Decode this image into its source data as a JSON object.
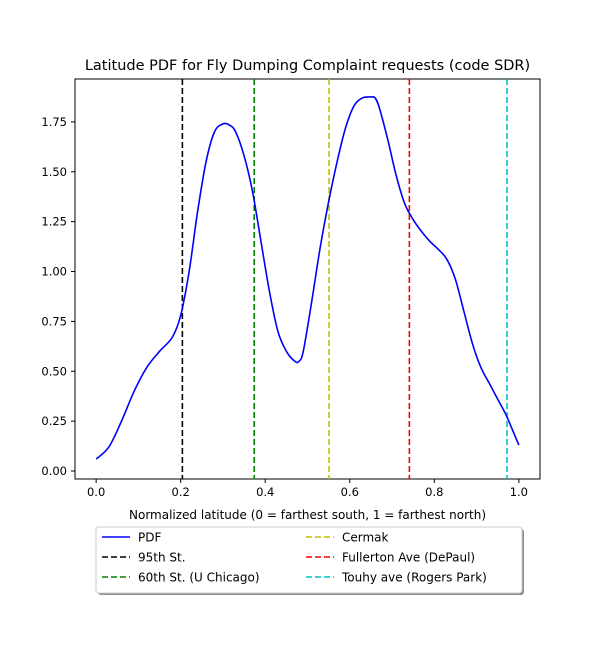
{
  "chart_data": {
    "type": "line",
    "title": "Latitude PDF for Fly Dumping Complaint  requests (code SDR)",
    "xlabel": "Normalized latitude (0 = farthest south, 1 = farthest north)",
    "ylabel": "",
    "xlim": [
      -0.05,
      1.05
    ],
    "ylim": [
      -0.04,
      1.965
    ],
    "x_ticks": [
      0.0,
      0.2,
      0.4,
      0.6,
      0.8,
      1.0
    ],
    "x_tick_labels": [
      "0.0",
      "0.2",
      "0.4",
      "0.6",
      "0.8",
      "1.0"
    ],
    "y_ticks": [
      0.0,
      0.25,
      0.5,
      0.75,
      1.0,
      1.25,
      1.5,
      1.75
    ],
    "y_tick_labels": [
      "0.00",
      "0.25",
      "0.50",
      "0.75",
      "1.00",
      "1.25",
      "1.50",
      "1.75"
    ],
    "grid": false,
    "legend_placement": "below plot, two columns",
    "series": [
      {
        "name": "PDF",
        "color": "#0000ff",
        "style": "solid",
        "x": [
          0.0,
          0.03,
          0.06,
          0.09,
          0.12,
          0.15,
          0.18,
          0.2,
          0.22,
          0.24,
          0.26,
          0.28,
          0.3,
          0.315,
          0.33,
          0.35,
          0.37,
          0.39,
          0.41,
          0.43,
          0.45,
          0.47,
          0.48,
          0.49,
          0.51,
          0.53,
          0.55,
          0.57,
          0.59,
          0.61,
          0.63,
          0.65,
          0.66,
          0.67,
          0.69,
          0.71,
          0.73,
          0.75,
          0.77,
          0.79,
          0.81,
          0.83,
          0.85,
          0.87,
          0.89,
          0.91,
          0.93,
          0.95,
          0.97,
          0.99,
          1.0
        ],
        "y": [
          0.06,
          0.12,
          0.25,
          0.4,
          0.52,
          0.6,
          0.67,
          0.78,
          1.0,
          1.3,
          1.55,
          1.7,
          1.74,
          1.735,
          1.7,
          1.58,
          1.4,
          1.15,
          0.9,
          0.7,
          0.6,
          0.55,
          0.55,
          0.6,
          0.85,
          1.12,
          1.35,
          1.55,
          1.72,
          1.83,
          1.87,
          1.875,
          1.87,
          1.82,
          1.66,
          1.48,
          1.34,
          1.26,
          1.2,
          1.15,
          1.11,
          1.06,
          0.96,
          0.8,
          0.64,
          0.52,
          0.44,
          0.36,
          0.28,
          0.18,
          0.13
        ]
      }
    ],
    "vlines": [
      {
        "name": "95th St.",
        "x": 0.204,
        "color": "#000000",
        "style": "dashed"
      },
      {
        "name": "60th St. (U Chicago)",
        "x": 0.374,
        "color": "#008000",
        "style": "dashed"
      },
      {
        "name": "Cermak",
        "x": 0.551,
        "color": "#bfbf00",
        "style": "dashed"
      },
      {
        "name": "Fullerton Ave (DePaul)",
        "x": 0.741,
        "color": "#ff0000",
        "style": "dashed"
      },
      {
        "name": "Touhy ave (Rogers Park)",
        "x": 0.972,
        "color": "#00bfbf",
        "style": "dashed"
      }
    ],
    "legend": [
      {
        "label": "PDF",
        "color": "#0000ff",
        "style": "solid"
      },
      {
        "label": "95th St.",
        "color": "#000000",
        "style": "dashed"
      },
      {
        "label": "60th St. (U Chicago)",
        "color": "#008000",
        "style": "dashed"
      },
      {
        "label": "Cermak",
        "color": "#bfbf00",
        "style": "dashed"
      },
      {
        "label": "Fullerton Ave (DePaul)",
        "color": "#ff0000",
        "style": "dashed"
      },
      {
        "label": "Touhy ave (Rogers Park)",
        "color": "#00bfbf",
        "style": "dashed"
      }
    ]
  }
}
